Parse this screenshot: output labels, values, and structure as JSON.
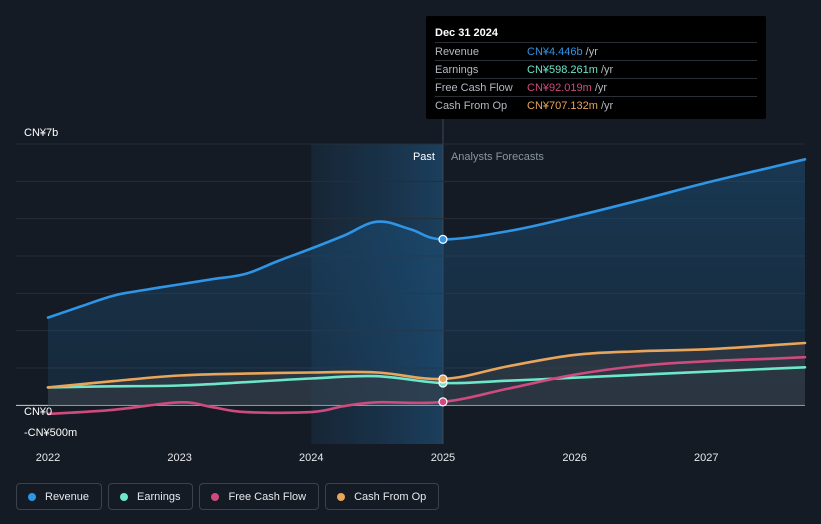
{
  "colors": {
    "revenue": "#2f95e6",
    "earnings": "#6ee6c8",
    "free_cash_flow": "#cf4a7d",
    "cash_from_op": "#e9a55a"
  },
  "tooltip": {
    "date": "Dec 31 2024",
    "rows": [
      {
        "label": "Revenue",
        "value": "CN¥4.446b",
        "unit": "/yr",
        "key": "revenue"
      },
      {
        "label": "Earnings",
        "value": "CN¥598.261m",
        "unit": "/yr",
        "key": "earnings"
      },
      {
        "label": "Free Cash Flow",
        "value": "CN¥92.019m",
        "unit": "/yr",
        "key": "free_cash_flow"
      },
      {
        "label": "Cash From Op",
        "value": "CN¥707.132m",
        "unit": "/yr",
        "key": "cash_from_op"
      }
    ]
  },
  "legend": [
    {
      "label": "Revenue",
      "key": "revenue"
    },
    {
      "label": "Earnings",
      "key": "earnings"
    },
    {
      "label": "Free Cash Flow",
      "key": "free_cash_flow"
    },
    {
      "label": "Cash From Op",
      "key": "cash_from_op"
    }
  ],
  "chart_data": {
    "type": "line",
    "title": "",
    "xlabel": "",
    "ylabel": "",
    "y_top_label": "CN¥7b",
    "y_zero_label": "CN¥0",
    "y_neg_label": "-CN¥500m",
    "ylim": [
      -500,
      7000
    ],
    "xlim": [
      2022.0,
      2027.75
    ],
    "x_ticks": [
      2022,
      2023,
      2024,
      2025,
      2026,
      2027
    ],
    "past_label": "Past",
    "forecast_label": "Analysts Forecasts",
    "past_start": 2024.0,
    "split": 2025.0,
    "highlight_x": 2025.0,
    "series": [
      {
        "name": "Revenue",
        "key": "revenue",
        "x": [
          2022.0,
          2022.25,
          2022.5,
          2022.75,
          2023.0,
          2023.25,
          2023.5,
          2023.75,
          2024.0,
          2024.25,
          2024.5,
          2024.75,
          2025.0,
          2025.5,
          2026.0,
          2026.5,
          2027.0,
          2027.5,
          2027.75
        ],
        "values": [
          2350,
          2650,
          2940,
          3100,
          3240,
          3380,
          3520,
          3870,
          4200,
          4550,
          4920,
          4720,
          4446,
          4670,
          5060,
          5500,
          5960,
          6380,
          6590
        ]
      },
      {
        "name": "Earnings",
        "key": "earnings",
        "x": [
          2022.0,
          2022.5,
          2023.0,
          2023.5,
          2024.0,
          2024.5,
          2025.0,
          2025.5,
          2026.0,
          2026.5,
          2027.0,
          2027.5,
          2027.75
        ],
        "values": [
          480,
          510,
          530,
          620,
          720,
          780,
          598,
          660,
          740,
          820,
          900,
          980,
          1020
        ]
      },
      {
        "name": "Free Cash Flow",
        "key": "free_cash_flow",
        "x": [
          2022.0,
          2022.5,
          2023.0,
          2023.25,
          2023.5,
          2024.0,
          2024.25,
          2024.5,
          2025.0,
          2025.5,
          2026.0,
          2026.5,
          2027.0,
          2027.5,
          2027.75
        ],
        "values": [
          -230,
          -120,
          80,
          -50,
          -180,
          -180,
          -20,
          80,
          92,
          450,
          820,
          1060,
          1180,
          1250,
          1290
        ]
      },
      {
        "name": "Cash From Op",
        "key": "cash_from_op",
        "x": [
          2022.0,
          2022.5,
          2023.0,
          2023.5,
          2024.0,
          2024.5,
          2025.0,
          2025.5,
          2026.0,
          2026.5,
          2027.0,
          2027.5,
          2027.75
        ],
        "values": [
          480,
          650,
          800,
          850,
          880,
          880,
          707,
          1050,
          1350,
          1450,
          1500,
          1610,
          1670
        ]
      }
    ]
  }
}
